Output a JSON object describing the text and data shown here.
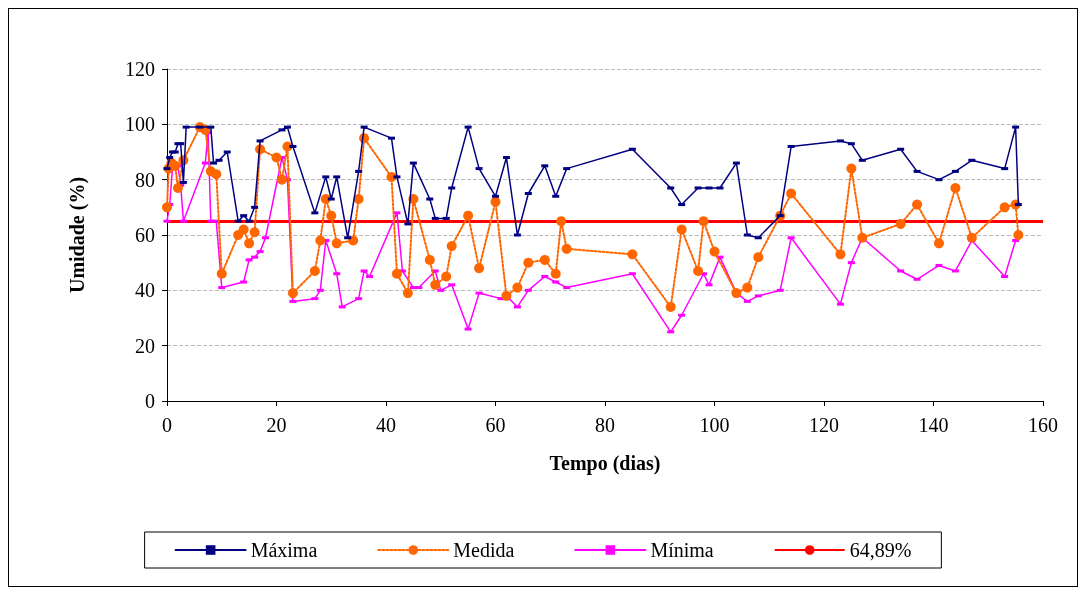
{
  "chart_data": {
    "type": "line",
    "xlabel": "Tempo (dias)",
    "ylabel": "Umidade (%)",
    "xlim": [
      0,
      160
    ],
    "xticks": [
      0,
      20,
      40,
      60,
      80,
      100,
      120,
      140,
      160
    ],
    "ylim": [
      0,
      120
    ],
    "yticks": [
      0,
      20,
      40,
      60,
      80,
      100,
      120
    ],
    "grid": "y",
    "legend": "bottom",
    "series": [
      {
        "name": "Máxima",
        "color": "#000080",
        "marker": "square",
        "line_style": "solid",
        "x": [
          0,
          0.5,
          1,
          1.5,
          2,
          2.5,
          3,
          3.5,
          6,
          8,
          8.5,
          9.5,
          11,
          13,
          14,
          15,
          16,
          17,
          21,
          22,
          23,
          27,
          29,
          30,
          31,
          33,
          35,
          36,
          41,
          42,
          44,
          45,
          48,
          49,
          51,
          52,
          55,
          57,
          60,
          62,
          64,
          66,
          69,
          71,
          73,
          85,
          92,
          94,
          97,
          99,
          101,
          104,
          106,
          108,
          112,
          114,
          123,
          125,
          127,
          134,
          137,
          141,
          144,
          147,
          153,
          155,
          155.5
        ],
        "values": [
          84,
          88,
          90,
          90,
          93,
          93,
          79,
          99,
          99,
          99,
          86,
          87,
          90,
          65,
          67,
          65,
          70,
          94,
          98,
          99,
          92,
          68,
          81,
          73,
          81,
          59,
          83,
          99,
          95,
          81,
          64,
          86,
          73,
          66,
          66,
          77,
          99,
          84,
          74,
          88,
          60,
          75,
          85,
          74,
          84,
          91,
          77,
          71,
          77,
          77,
          77,
          86,
          60,
          59,
          67,
          92,
          94,
          93,
          87,
          91,
          83,
          80,
          83,
          87,
          84,
          99,
          71
        ]
      },
      {
        "name": "Medida",
        "color": "#ff6600",
        "marker": "circle",
        "line_style": "dotted",
        "x": [
          0,
          0.3,
          0.8,
          1.5,
          2,
          3,
          6,
          7,
          8,
          9,
          10,
          13,
          14,
          15,
          16,
          17,
          20,
          21,
          22,
          23,
          27,
          28,
          29,
          30,
          31,
          34,
          35,
          36,
          41,
          42,
          44,
          45,
          48,
          49,
          51,
          52,
          55,
          57,
          60,
          62,
          64,
          66,
          69,
          71,
          72,
          73,
          85,
          92,
          94,
          97,
          98,
          100,
          104,
          106,
          108,
          112,
          114,
          123,
          125,
          127,
          134,
          137,
          141,
          144,
          147,
          153,
          155,
          155.5
        ],
        "values": [
          70,
          84,
          86,
          85,
          77,
          87,
          99,
          98,
          83,
          82,
          46,
          60,
          62,
          57,
          61,
          91,
          88,
          80,
          92,
          39,
          47,
          58,
          73,
          67,
          57,
          58,
          73,
          95,
          81,
          46,
          39,
          73,
          51,
          42,
          45,
          56,
          67,
          48,
          72,
          38,
          41,
          50,
          51,
          46,
          65,
          55,
          53,
          34,
          62,
          47,
          65,
          54,
          39,
          41,
          52,
          67,
          75,
          53,
          84,
          59,
          64,
          71,
          57,
          77,
          59,
          70,
          71,
          60
        ]
      },
      {
        "name": "Mínima",
        "color": "#ff00ff",
        "marker": "square",
        "line_style": "solid",
        "x": [
          0,
          0.5,
          1,
          1.5,
          2,
          2.5,
          3,
          7,
          7.5,
          8,
          9,
          10,
          14,
          15,
          16,
          17,
          18,
          21,
          22,
          23,
          27,
          28,
          29,
          31,
          32,
          35,
          36,
          37,
          42,
          43,
          45,
          46,
          49,
          50,
          52,
          55,
          57,
          61,
          62,
          64,
          66,
          69,
          71,
          73,
          85,
          92,
          94,
          98,
          99,
          101,
          104,
          106,
          108,
          112,
          114,
          123,
          125,
          127,
          134,
          137,
          141,
          144,
          147,
          153,
          155,
          155.5
        ],
        "values": [
          65,
          71,
          84,
          85,
          85,
          78,
          65,
          86,
          97,
          65,
          65,
          41,
          43,
          51,
          52,
          54,
          59,
          88,
          80,
          36,
          37,
          40,
          58,
          46,
          34,
          37,
          47,
          45,
          68,
          47,
          41,
          41,
          47,
          40,
          42,
          26,
          39,
          37,
          38,
          34,
          40,
          45,
          43,
          41,
          46,
          25,
          31,
          46,
          42,
          52,
          39,
          36,
          38,
          40,
          59,
          35,
          50,
          59,
          47,
          44,
          49,
          47,
          58,
          45,
          58,
          60
        ]
      }
    ],
    "ref_lines": [
      {
        "axis": "y",
        "value": 64.89,
        "label": "64,89%",
        "color": "#ff0000",
        "line_style": "solid"
      }
    ]
  }
}
